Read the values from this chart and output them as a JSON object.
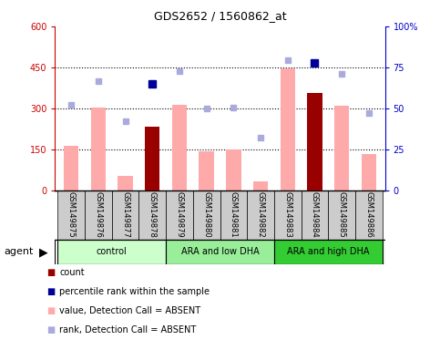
{
  "title": "GDS2652 / 1560862_at",
  "samples": [
    "GSM149875",
    "GSM149876",
    "GSM149877",
    "GSM149878",
    "GSM149879",
    "GSM149880",
    "GSM149881",
    "GSM149882",
    "GSM149883",
    "GSM149884",
    "GSM149885",
    "GSM149886"
  ],
  "groups": [
    {
      "label": "control",
      "color": "#ccffcc",
      "span": [
        0,
        4
      ]
    },
    {
      "label": "ARA and low DHA",
      "color": "#99ee99",
      "span": [
        4,
        8
      ]
    },
    {
      "label": "ARA and high DHA",
      "color": "#33cc33",
      "span": [
        8,
        12
      ]
    }
  ],
  "ylim_left": [
    0,
    600
  ],
  "ylim_right": [
    0,
    100
  ],
  "yticks_left": [
    0,
    150,
    300,
    450,
    600
  ],
  "yticks_right": [
    0,
    25,
    50,
    75,
    100
  ],
  "ytick_labels_left": [
    "0",
    "150",
    "300",
    "450",
    "600"
  ],
  "ytick_labels_right": [
    "0",
    "25",
    "50",
    "75",
    "100%"
  ],
  "bar_pink_values": [
    165,
    305,
    55,
    0,
    315,
    145,
    150,
    35,
    445,
    0,
    310,
    135
  ],
  "bar_dark_red_values": [
    0,
    0,
    0,
    235,
    0,
    0,
    0,
    0,
    0,
    355,
    0,
    0
  ],
  "dot_blue_values": [
    null,
    null,
    null,
    390,
    null,
    null,
    null,
    null,
    null,
    465,
    null,
    null
  ],
  "dot_lightblue_values": [
    315,
    400,
    255,
    null,
    435,
    300,
    305,
    195,
    475,
    null,
    425,
    285
  ],
  "left_axis_color": "#cc0000",
  "right_axis_color": "#0000cc",
  "bar_pink_color": "#ffaaaa",
  "bar_darkred_color": "#990000",
  "dot_blue_color": "#000099",
  "dot_lightblue_color": "#aaaadd",
  "legend_items": [
    {
      "color": "#990000",
      "label": "count"
    },
    {
      "color": "#000099",
      "label": "percentile rank within the sample"
    },
    {
      "color": "#ffaaaa",
      "label": "value, Detection Call = ABSENT"
    },
    {
      "color": "#aaaadd",
      "label": "rank, Detection Call = ABSENT"
    }
  ],
  "agent_label": "agent",
  "group_arrow": "▶"
}
